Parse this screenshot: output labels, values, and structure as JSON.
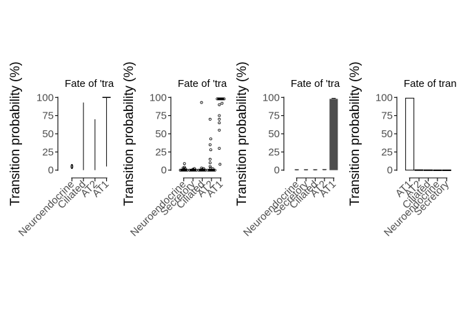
{
  "chart_data": [
    {
      "type": "violin",
      "title": "Fate of 'tra",
      "ylabel": "Transition probability (%)",
      "ylim": [
        -5,
        105
      ],
      "yticks": [
        0,
        25,
        50,
        75,
        100
      ],
      "categories": [
        "Neuroendocrine",
        "Ciliated",
        "AT2",
        "AT1"
      ],
      "ranges": [
        [
          2,
          8
        ],
        [
          0,
          93
        ],
        [
          0,
          70
        ],
        [
          5,
          100
        ]
      ]
    },
    {
      "type": "boxplot",
      "title": "Fate of 'tra",
      "ylabel": "Transition probability (%)",
      "ylim": [
        -5,
        105
      ],
      "yticks": [
        0,
        25,
        50,
        75,
        100
      ],
      "categories": [
        "Neuroendocrine",
        "Secretory",
        "Ciliated",
        "AT2",
        "AT1"
      ],
      "medians": [
        0,
        0,
        0,
        0,
        98
      ],
      "outliers": [
        [
          9,
          4,
          3,
          2,
          2,
          1,
          1
        ],
        [
          2,
          2,
          1,
          1
        ],
        [
          93,
          3,
          2,
          2,
          1
        ],
        [
          70,
          43,
          35,
          28,
          15,
          10,
          5,
          3,
          2
        ],
        [
          92,
          90,
          75,
          70,
          65,
          55,
          30,
          8
        ]
      ]
    },
    {
      "type": "bar",
      "title": "Fate of 'tra",
      "ylabel": "Transition probability (%)",
      "ylim": [
        -5,
        105
      ],
      "yticks": [
        0,
        25,
        50,
        75,
        100
      ],
      "categories": [
        "Neuroendocrine",
        "Secretory",
        "Ciliated",
        "AT2",
        "AT1"
      ],
      "values": [
        0.3,
        0.3,
        0.3,
        0.5,
        98
      ],
      "errors": [
        0.3,
        0.3,
        0.3,
        0.3,
        0.8
      ]
    },
    {
      "type": "bar",
      "title": "Fate of tran",
      "ylabel": "Transition probability (%)",
      "ylim": [
        -5,
        105
      ],
      "yticks": [
        0,
        25,
        50,
        75,
        100
      ],
      "categories": [
        "AT1",
        "AT2",
        "Ciliated",
        "Neuroendocrine",
        "Secretory"
      ],
      "values": [
        99,
        0.5,
        0.4,
        0.3,
        0.3
      ]
    }
  ]
}
